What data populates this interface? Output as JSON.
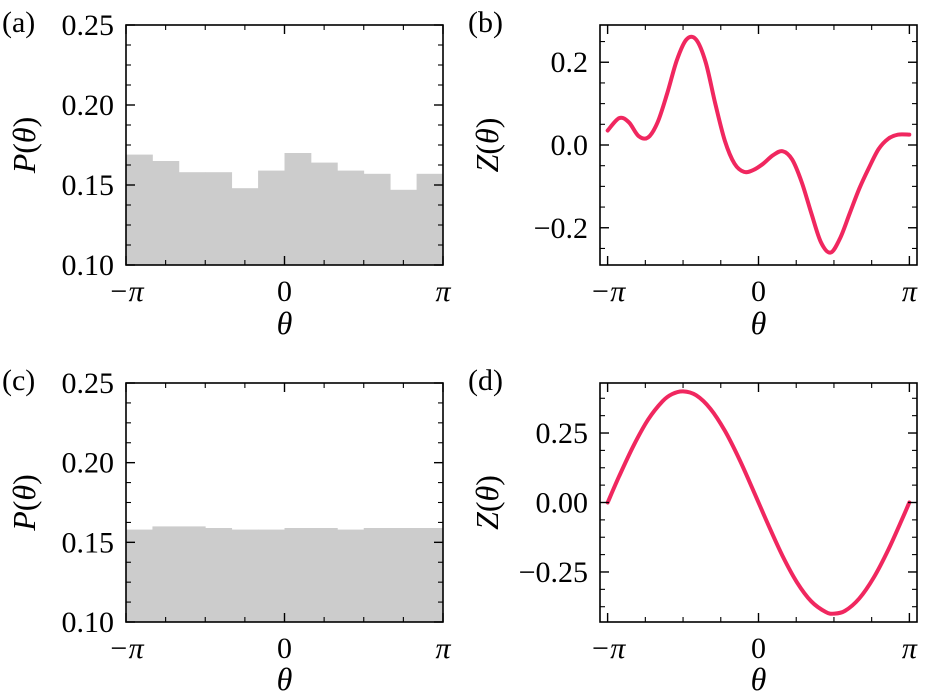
{
  "colors": {
    "bar": "#cccccc",
    "line": "#f0275f",
    "axis": "#000000"
  },
  "chart_data": [
    {
      "panel_label": "(a)",
      "type": "bar",
      "xlabel": "θ",
      "ylabel": "P(θ)",
      "xlim": [
        -3.14159,
        3.14159
      ],
      "ylim": [
        0.1,
        0.25
      ],
      "xticks": [
        -3.14159,
        0,
        3.14159
      ],
      "xticklabels": [
        "−π",
        "0",
        "π"
      ],
      "yticks": [
        0.1,
        0.15,
        0.2,
        0.25
      ],
      "yticklabels": [
        "0.10",
        "0.15",
        "0.20",
        "0.25"
      ],
      "bin_edges": [
        -3.14159,
        -2.61799,
        -2.0944,
        -1.5708,
        -1.0472,
        -0.5236,
        0,
        0.5236,
        1.0472,
        1.5708,
        2.0944,
        2.61799,
        3.14159
      ],
      "values": [
        0.169,
        0.165,
        0.158,
        0.158,
        0.148,
        0.159,
        0.17,
        0.164,
        0.159,
        0.157,
        0.147,
        0.157
      ]
    },
    {
      "panel_label": "(b)",
      "type": "line",
      "xlabel": "θ",
      "ylabel": "Z(θ)",
      "xlim": [
        -3.3,
        3.3
      ],
      "ylim": [
        -0.29,
        0.29
      ],
      "xticks": [
        -3.14159,
        0,
        3.14159
      ],
      "xticklabels": [
        "−π",
        "0",
        "π"
      ],
      "yticks": [
        -0.2,
        0,
        0.2
      ],
      "yticklabels": [
        "−0.2",
        "0.0",
        "0.2"
      ],
      "x": [
        -3.14,
        -2.9,
        -2.7,
        -2.5,
        -2.3,
        -2.1,
        -1.9,
        -1.7,
        -1.5,
        -1.3,
        -1.1,
        -0.9,
        -0.7,
        -0.5,
        -0.3,
        -0.1,
        0.1,
        0.3,
        0.5,
        0.7,
        0.9,
        1.1,
        1.3,
        1.5,
        1.7,
        1.9,
        2.1,
        2.3,
        2.5,
        2.7,
        2.9,
        3.14
      ],
      "y": [
        0.035,
        0.065,
        0.055,
        0.022,
        0.018,
        0.055,
        0.125,
        0.205,
        0.255,
        0.255,
        0.2,
        0.1,
        0.01,
        -0.045,
        -0.065,
        -0.06,
        -0.045,
        -0.025,
        -0.015,
        -0.035,
        -0.09,
        -0.165,
        -0.235,
        -0.26,
        -0.225,
        -0.165,
        -0.105,
        -0.055,
        -0.01,
        0.015,
        0.025,
        0.025
      ]
    },
    {
      "panel_label": "(c)",
      "type": "bar",
      "xlabel": "θ",
      "ylabel": "P(θ)",
      "xlim": [
        -3.14159,
        3.14159
      ],
      "ylim": [
        0.1,
        0.25
      ],
      "xticks": [
        -3.14159,
        0,
        3.14159
      ],
      "xticklabels": [
        "−π",
        "0",
        "π"
      ],
      "yticks": [
        0.1,
        0.15,
        0.2,
        0.25
      ],
      "yticklabels": [
        "0.10",
        "0.15",
        "0.20",
        "0.25"
      ],
      "bin_edges": [
        -3.14159,
        -2.61799,
        -2.0944,
        -1.5708,
        -1.0472,
        -0.5236,
        0,
        0.5236,
        1.0472,
        1.5708,
        2.0944,
        2.61799,
        3.14159
      ],
      "values": [
        0.158,
        0.16,
        0.16,
        0.159,
        0.158,
        0.158,
        0.159,
        0.159,
        0.158,
        0.159,
        0.159,
        0.159
      ]
    },
    {
      "panel_label": "(d)",
      "type": "line",
      "xlabel": "θ",
      "ylabel": "Z(θ)",
      "xlim": [
        -3.3,
        3.3
      ],
      "ylim": [
        -0.43,
        0.43
      ],
      "xticks": [
        -3.14159,
        0,
        3.14159
      ],
      "xticklabels": [
        "−π",
        "0",
        "π"
      ],
      "yticks": [
        -0.25,
        0,
        0.25
      ],
      "yticklabels": [
        "−0.25",
        "0.00",
        "0.25"
      ],
      "x": [
        -3.14,
        -2.9,
        -2.6,
        -2.3,
        -2.0,
        -1.8,
        -1.57,
        -1.3,
        -1.0,
        -0.7,
        -0.4,
        -0.1,
        0.2,
        0.5,
        0.8,
        1.1,
        1.4,
        1.57,
        1.8,
        2.1,
        2.4,
        2.7,
        3.0,
        3.14
      ],
      "y": [
        0.0,
        0.095,
        0.205,
        0.298,
        0.364,
        0.39,
        0.4,
        0.386,
        0.337,
        0.258,
        0.156,
        0.04,
        -0.079,
        -0.192,
        -0.287,
        -0.356,
        -0.394,
        -0.4,
        -0.39,
        -0.345,
        -0.27,
        -0.171,
        -0.056,
        0.0
      ]
    }
  ]
}
